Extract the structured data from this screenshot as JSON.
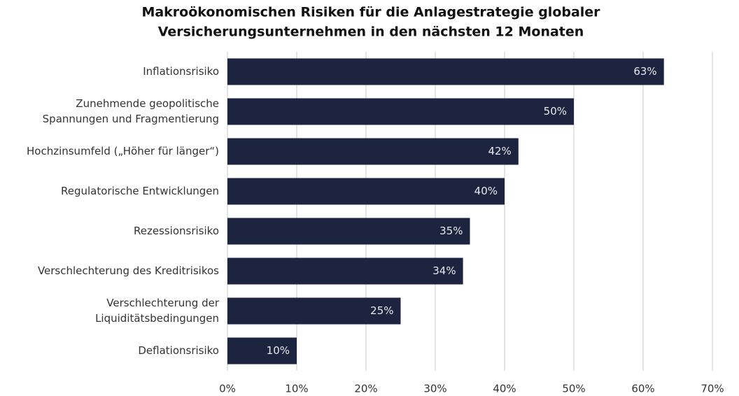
{
  "chart_data": {
    "type": "bar",
    "orientation": "horizontal",
    "title": [
      "Makroökonomischen Risiken für die Anlagestrategie globaler",
      "Versicherungsunternehmen in den nächsten 12 Monaten"
    ],
    "categories": [
      [
        "Inflationsrisiko"
      ],
      [
        "Zunehmende geopolitische",
        "Spannungen und Fragmentierung"
      ],
      [
        "Hochzinsumfeld („Höher für länger“)"
      ],
      [
        "Regulatorische Entwicklungen"
      ],
      [
        "Rezessionsrisiko"
      ],
      [
        "Verschlechterung des Kreditrisikos"
      ],
      [
        "Verschlechterung der",
        "Liquiditätsbedingungen"
      ],
      [
        "Deflationsrisiko"
      ]
    ],
    "values": [
      63,
      50,
      42,
      40,
      35,
      34,
      25,
      10
    ],
    "value_labels": [
      "63%",
      "50%",
      "42%",
      "40%",
      "35%",
      "34%",
      "25%",
      "10%"
    ],
    "color": "#1c2440",
    "xlim": [
      0,
      70
    ],
    "xticks": [
      {
        "value": 0,
        "label": "0%"
      },
      {
        "value": 10,
        "label": "10%"
      },
      {
        "value": 20,
        "label": "20%"
      },
      {
        "value": 30,
        "label": "30%"
      },
      {
        "value": 40,
        "label": "40%"
      },
      {
        "value": 50,
        "label": "50%"
      },
      {
        "value": 60,
        "label": "60%"
      },
      {
        "value": 70,
        "label": "70%"
      }
    ],
    "grid": true
  }
}
